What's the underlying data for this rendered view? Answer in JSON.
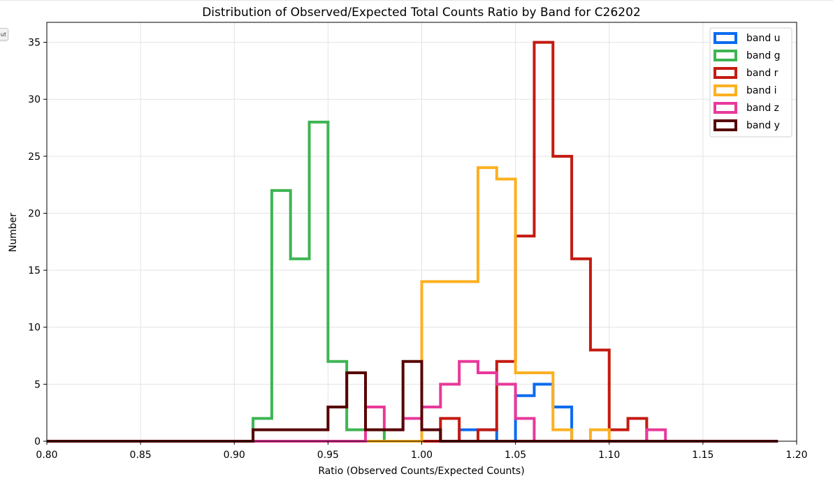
{
  "side_tab": {
    "label": "ut"
  },
  "chart_data": {
    "type": "histogram",
    "title": "Distribution of Observed/Expected Total Counts Ratio by Band for C26202",
    "xlabel": "Ratio (Observed Counts/Expected Counts)",
    "ylabel": "Number",
    "xlim": [
      0.8,
      1.2
    ],
    "ylim": [
      0,
      36.75
    ],
    "grid": true,
    "legend_position": "top-right",
    "bins": {
      "start": 0.8,
      "width": 0.01,
      "count": 39
    },
    "x_ticks": [
      "0.80",
      "0.85",
      "0.90",
      "0.95",
      "1.00",
      "1.05",
      "1.10",
      "1.15",
      "1.20"
    ],
    "x_tick_values": [
      0.8,
      0.85,
      0.9,
      0.95,
      1.0,
      1.05,
      1.1,
      1.15,
      1.2
    ],
    "y_ticks": [
      "0",
      "5",
      "10",
      "15",
      "20",
      "25",
      "30",
      "35"
    ],
    "y_tick_values": [
      0,
      5,
      10,
      15,
      20,
      25,
      30,
      35
    ],
    "series": [
      {
        "name": "band u",
        "color": "#0a6bf0",
        "values": [
          0,
          0,
          0,
          0,
          0,
          0,
          0,
          0,
          0,
          0,
          0,
          0,
          0,
          0,
          0,
          0,
          0,
          0,
          0,
          0,
          0,
          0,
          1,
          1,
          0,
          4,
          5,
          3,
          0,
          0,
          0,
          0,
          0,
          0,
          0,
          0,
          0,
          0,
          0
        ]
      },
      {
        "name": "band g",
        "color": "#3db553",
        "values": [
          0,
          0,
          0,
          0,
          0,
          0,
          0,
          0,
          0,
          0,
          0,
          2,
          22,
          16,
          28,
          7,
          1,
          1,
          0,
          0,
          0,
          0,
          0,
          0,
          0,
          0,
          0,
          0,
          0,
          0,
          0,
          0,
          0,
          0,
          0,
          0,
          0,
          0,
          0
        ]
      },
      {
        "name": "band r",
        "color": "#c41a12",
        "values": [
          0,
          0,
          0,
          0,
          0,
          0,
          0,
          0,
          0,
          0,
          0,
          0,
          0,
          0,
          0,
          0,
          0,
          0,
          0,
          0,
          0,
          2,
          0,
          1,
          7,
          18,
          35,
          25,
          16,
          8,
          1,
          2,
          0,
          0,
          0,
          0,
          0,
          0,
          0
        ]
      },
      {
        "name": "band i",
        "color": "#fcb021",
        "values": [
          0,
          0,
          0,
          0,
          0,
          0,
          0,
          0,
          0,
          0,
          0,
          0,
          0,
          0,
          0,
          0,
          0,
          0,
          0,
          0,
          14,
          14,
          14,
          24,
          23,
          6,
          6,
          1,
          0,
          1,
          0,
          0,
          0,
          0,
          0,
          0,
          0,
          0,
          0
        ]
      },
      {
        "name": "band z",
        "color": "#e8399a",
        "values": [
          0,
          0,
          0,
          0,
          0,
          0,
          0,
          0,
          0,
          0,
          0,
          0,
          0,
          0,
          0,
          0,
          0,
          3,
          1,
          2,
          3,
          5,
          7,
          6,
          5,
          2,
          0,
          0,
          0,
          0,
          0,
          0,
          1,
          0,
          0,
          0,
          0,
          0,
          0
        ]
      },
      {
        "name": "band y",
        "color": "#560000",
        "values": [
          0,
          0,
          0,
          0,
          0,
          0,
          0,
          0,
          0,
          0,
          0,
          1,
          1,
          1,
          1,
          3,
          6,
          1,
          1,
          7,
          1,
          0,
          0,
          0,
          0,
          0,
          0,
          0,
          0,
          0,
          0,
          0,
          0,
          0,
          0,
          0,
          0,
          0,
          0
        ]
      }
    ]
  }
}
